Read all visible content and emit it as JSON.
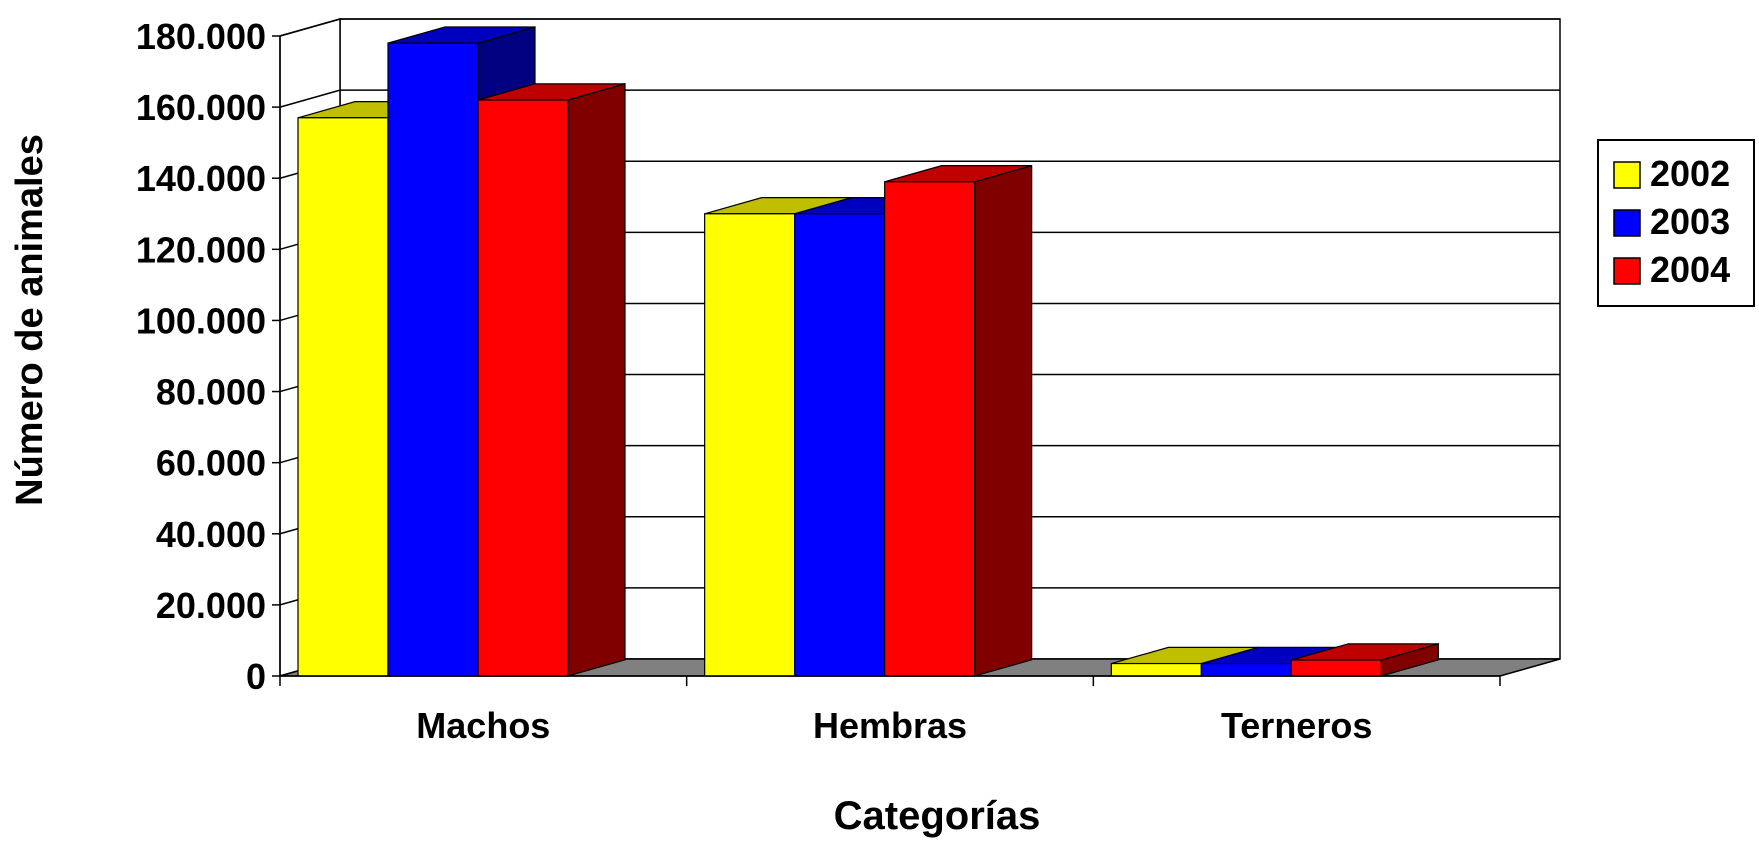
{
  "chart_data": {
    "type": "bar",
    "style": "3d-clustered-column",
    "title": "",
    "xlabel": "Categorías",
    "ylabel": "Número de animales",
    "categories": [
      "Machos",
      "Hembras",
      "Terneros"
    ],
    "series": [
      {
        "name": "2002",
        "color": "#FFFF00",
        "values": [
          157000,
          130000,
          3500
        ]
      },
      {
        "name": "2003",
        "color": "#0000FF",
        "values": [
          178000,
          130000,
          3500
        ]
      },
      {
        "name": "2004",
        "color": "#FF0000",
        "values": [
          162000,
          139000,
          4500
        ]
      }
    ],
    "ylim": [
      0,
      180000
    ],
    "yticks": [
      "0",
      "20.000",
      "40.000",
      "60.000",
      "80.000",
      "100.000",
      "120.000",
      "140.000",
      "160.000",
      "180.000"
    ],
    "grid": true,
    "legend_position": "right",
    "floor_color": "#808080"
  }
}
